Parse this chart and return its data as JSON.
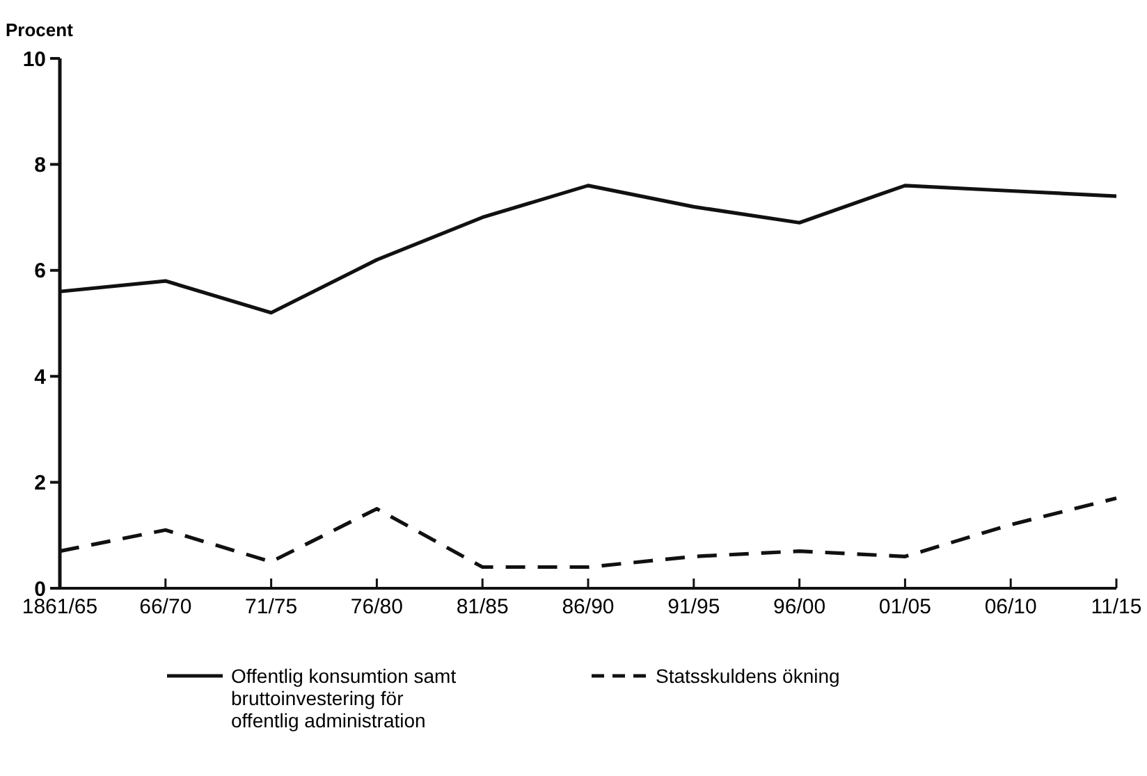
{
  "chart_data": {
    "type": "line",
    "ylabel": "Procent",
    "categories": [
      "1861/65",
      "66/70",
      "71/75",
      "76/80",
      "81/85",
      "86/90",
      "91/95",
      "96/00",
      "01/05",
      "06/10",
      "11/15"
    ],
    "series": [
      {
        "name": "Offentlig konsumtion samt bruttoinvestering för offentlig administration",
        "color": "#111111",
        "line_style": "solid",
        "values": [
          5.6,
          5.8,
          5.2,
          6.2,
          7.0,
          7.6,
          7.2,
          6.9,
          7.6,
          7.5,
          7.4
        ]
      },
      {
        "name": "Statsskuldens ökning",
        "color": "#111111",
        "line_style": "dashed",
        "values": [
          0.7,
          1.1,
          0.5,
          1.5,
          0.4,
          0.4,
          0.6,
          0.7,
          0.6,
          1.2,
          1.7
        ]
      }
    ],
    "ylim": [
      0,
      10
    ],
    "yticks": [
      0,
      2,
      4,
      6,
      8,
      10
    ],
    "grid": false,
    "legend": "bottom",
    "marker": "none"
  }
}
